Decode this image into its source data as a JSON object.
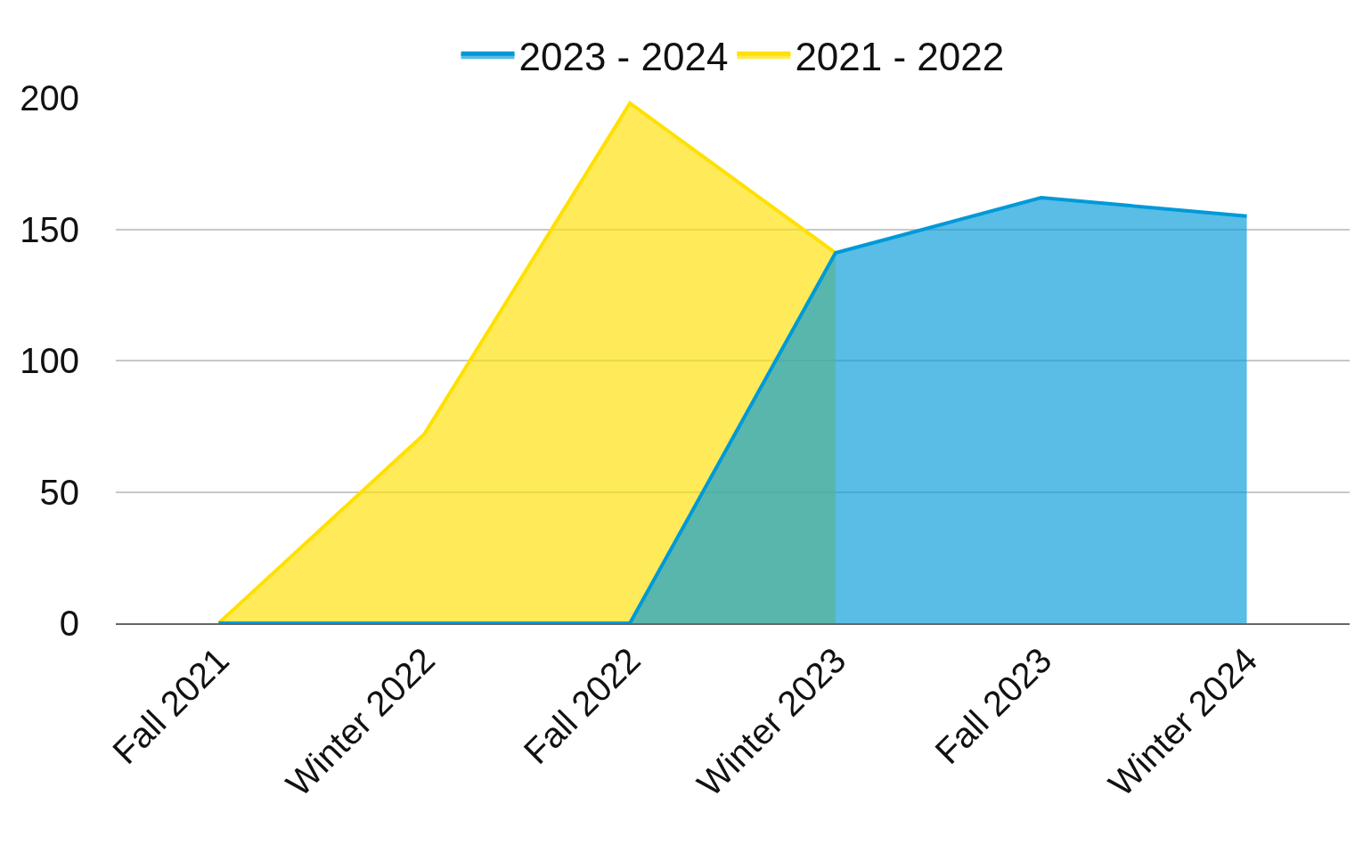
{
  "chart_data": {
    "type": "area",
    "categories": [
      "Fall 2021",
      "Winter 2022",
      "Fall 2022",
      "Winter 2023",
      "Fall 2023",
      "Winter 2024"
    ],
    "series": [
      {
        "name": "2023 - 2024",
        "color": "#0099d8",
        "values": [
          0,
          0,
          0,
          141,
          162,
          155
        ]
      },
      {
        "name": "2021 - 2022",
        "color": "#ffe000",
        "values": [
          0,
          72,
          198,
          141,
          null,
          null
        ]
      }
    ],
    "ylim": [
      0,
      200
    ],
    "yticks": [
      0,
      50,
      100,
      150,
      200
    ],
    "grid": "y",
    "legend": "top",
    "marker": "none",
    "line_style": "solid"
  }
}
